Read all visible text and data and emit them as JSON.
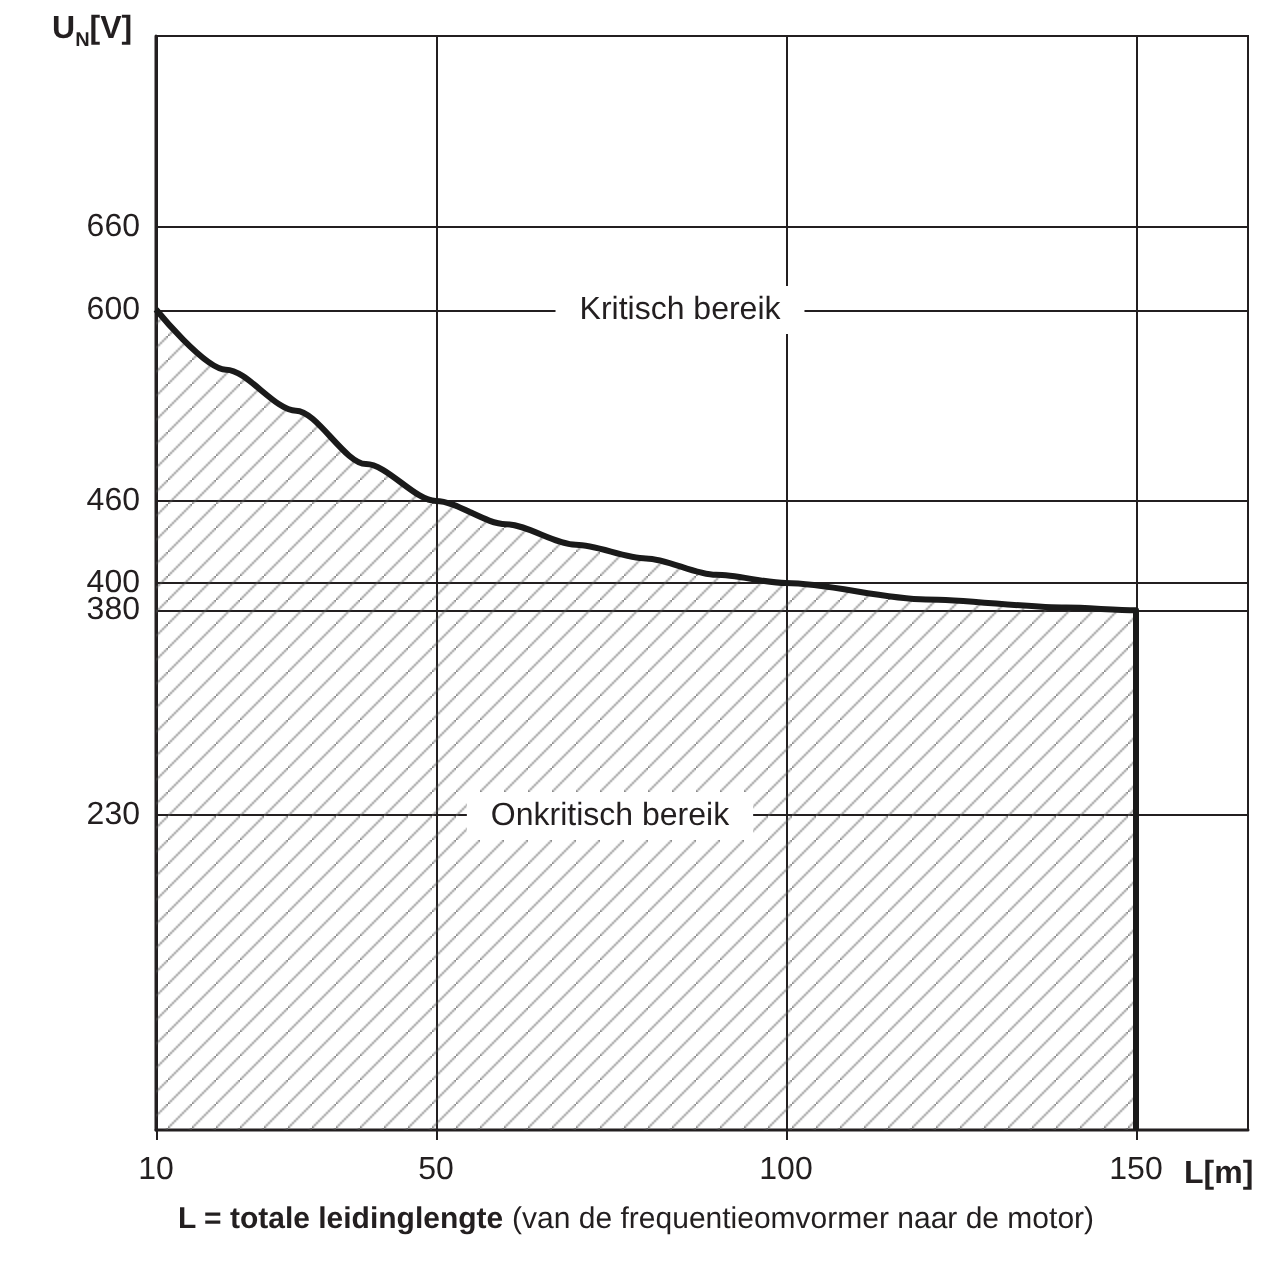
{
  "chart_data": {
    "type": "area",
    "xlabel": "L[m]",
    "ylabel": "U$_{N}$[V]",
    "x": [
      10,
      20,
      30,
      40,
      50,
      60,
      70,
      80,
      90,
      100,
      120,
      140,
      150,
      150
    ],
    "series": [
      {
        "color": "#1a1a1a",
        "values": [
          600,
          556,
          526,
          487,
          460,
          443,
          428,
          418,
          406,
          400,
          388,
          382,
          380,
          0
        ]
      }
    ],
    "xlim": [
      10,
      166
    ],
    "xticks": [
      10,
      50,
      100,
      150
    ],
    "ylim": [
      0,
      800
    ],
    "yticks": [
      230,
      380,
      400,
      460,
      600,
      660
    ],
    "grid": true,
    "marker": "none",
    "line_style": "solid",
    "annotations": [
      "Kritisch bereik",
      "Onkritisch bereik",
      "L = totale leidinglengte (van de frequentieomvormer naar de motor)"
    ]
  }
}
